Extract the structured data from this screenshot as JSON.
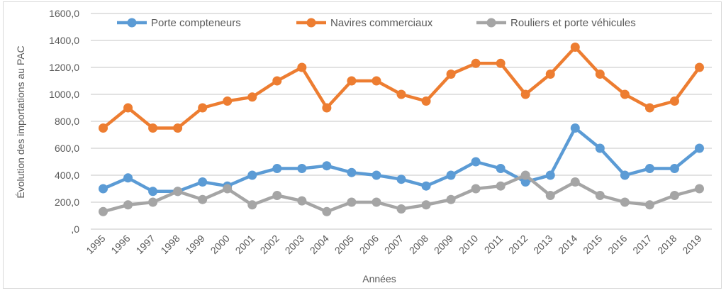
{
  "chart_data": {
    "type": "line",
    "title": "",
    "xlabel": "Années",
    "ylabel": "Évolution des importations au PAC",
    "ylim": [
      0,
      1600
    ],
    "yticks": [
      0,
      200,
      400,
      600,
      800,
      1000,
      1200,
      1400,
      1600
    ],
    "ytick_labels": [
      ",0",
      "200,0",
      "400,0",
      "600,0",
      "800,0",
      "1000,0",
      "1200,0",
      "1400,0",
      "1600,0"
    ],
    "grid": true,
    "legend_position": "top",
    "categories": [
      "1995",
      "1996",
      "1997",
      "1998",
      "1999",
      "2000",
      "2001",
      "2002",
      "2003",
      "2004",
      "2005",
      "2006",
      "2007",
      "2008",
      "2009",
      "2010",
      "2011",
      "2012",
      "2013",
      "2014",
      "2015",
      "2016",
      "2017",
      "2018",
      "2019"
    ],
    "series": [
      {
        "name": "Porte compteneurs",
        "color": "#5b9bd5",
        "values": [
          300,
          380,
          280,
          280,
          350,
          320,
          400,
          450,
          450,
          470,
          420,
          400,
          370,
          320,
          400,
          500,
          450,
          350,
          400,
          750,
          600,
          400,
          450,
          450,
          600
        ]
      },
      {
        "name": "Navires commerciaux",
        "color": "#ed7d31",
        "values": [
          750,
          900,
          750,
          750,
          900,
          950,
          980,
          1100,
          1200,
          900,
          1100,
          1100,
          1000,
          950,
          1150,
          1230,
          1230,
          1000,
          1150,
          1350,
          1150,
          1000,
          900,
          950,
          1200
        ]
      },
      {
        "name": "Rouliers et porte véhicules",
        "color": "#a5a5a5",
        "values": [
          130,
          180,
          200,
          280,
          220,
          300,
          180,
          250,
          210,
          130,
          200,
          200,
          150,
          180,
          220,
          300,
          320,
          400,
          250,
          350,
          250,
          200,
          180,
          250,
          300
        ]
      }
    ]
  }
}
